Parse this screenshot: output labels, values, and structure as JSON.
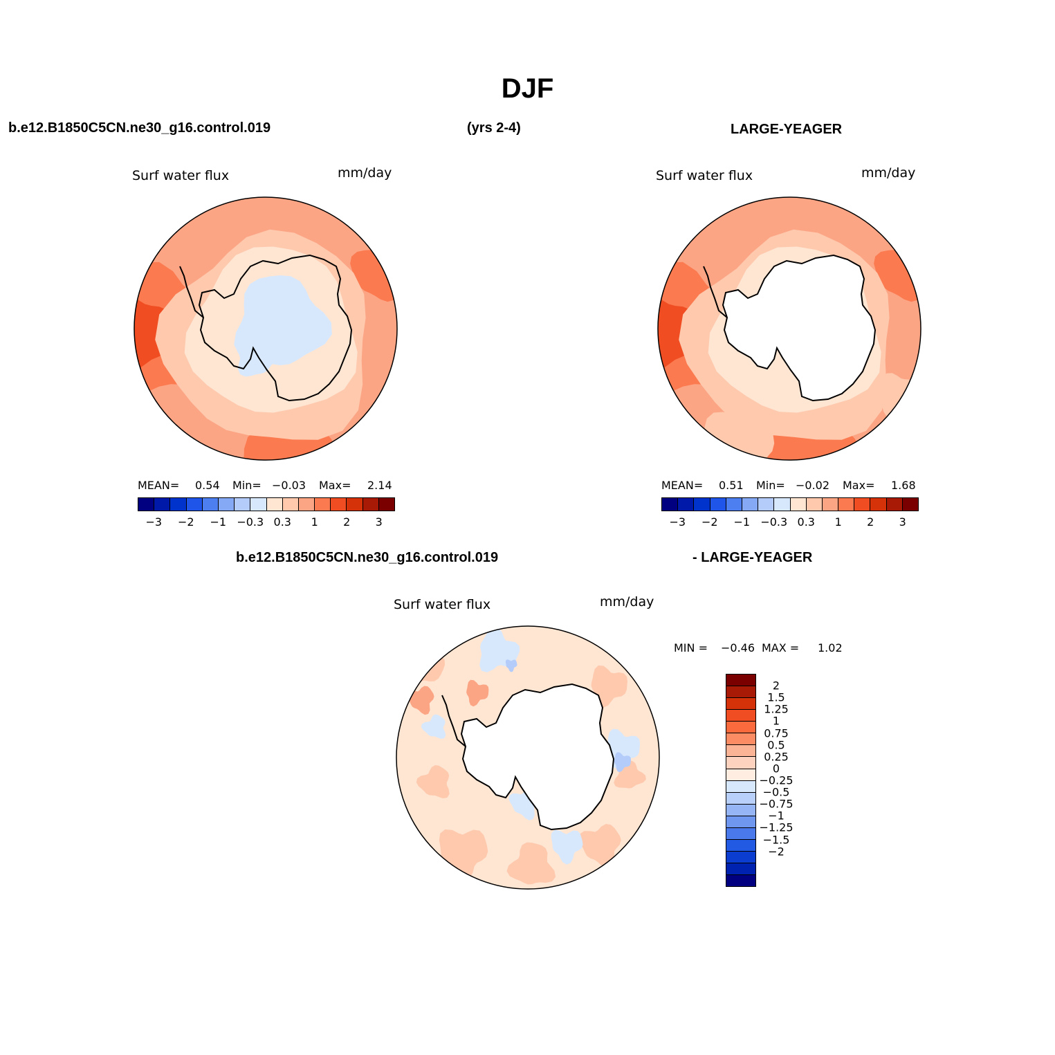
{
  "title": "DJF",
  "case_name": "b.e12.B1850C5CN.ne30_g16.control.019",
  "period": "(yrs 2-4)",
  "obs_name": "LARGE-YEAGER",
  "diff_left": "b.e12.B1850C5CN.ne30_g16.control.019",
  "diff_right": "- LARGE-YEAGER",
  "panels": [
    {
      "variable": "Surf water flux",
      "units": "mm/day",
      "mean_label": "MEAN=",
      "mean": "0.54",
      "min_label": "Min=",
      "min": "−0.03",
      "max_label": "Max=",
      "max": "2.14"
    },
    {
      "variable": "Surf water flux",
      "units": "mm/day",
      "mean_label": "MEAN=",
      "mean": "0.51",
      "min_label": "Min=",
      "min": "−0.02",
      "max_label": "Max=",
      "max": "1.68"
    },
    {
      "variable": "Surf water flux",
      "units": "mm/day",
      "min_label": "MIN =",
      "min": "−0.46",
      "max_label": "MAX =",
      "max": "1.02"
    }
  ],
  "colorbar": {
    "colors": [
      "#000080",
      "#0019a8",
      "#0033cc",
      "#1f55e8",
      "#4d7ff0",
      "#86a9f5",
      "#b3ccfa",
      "#d7e8fc",
      "#ffe6d3",
      "#ffc9ae",
      "#fca585",
      "#fb7a50",
      "#f04e22",
      "#d63209",
      "#a81a05",
      "#7a0000"
    ],
    "tick_labels": [
      "−3",
      "−2",
      "−1",
      "−0.3",
      "0.3",
      "1",
      "2",
      "3"
    ]
  },
  "diff_colorbar": {
    "colors": [
      "#7a0000",
      "#a81a05",
      "#d63209",
      "#f04e22",
      "#fb6a3c",
      "#fb8c64",
      "#fcb496",
      "#fdd3bf",
      "#ffede2",
      "#d7e8fc",
      "#b9d0fa",
      "#96b5f5",
      "#6f97f0",
      "#4a79ec",
      "#235ae4",
      "#0a3dd0",
      "#0022b0",
      "#000080"
    ],
    "tick_labels": [
      "2",
      "1.5",
      "1.25",
      "1",
      "0.75",
      "0.5",
      "0.25",
      "0",
      "−0.25",
      "−0.5",
      "−0.75",
      "−1",
      "−1.25",
      "−1.5",
      "−2"
    ]
  },
  "map_colors": {
    "land": "#ffffff",
    "light_blue": "#d7e8fc",
    "blue": "#b3ccfa",
    "pale": "#ffe6d3",
    "light": "#ffc9ae",
    "medium": "#fca585",
    "strong": "#fb7a50",
    "deep": "#f04e22"
  }
}
